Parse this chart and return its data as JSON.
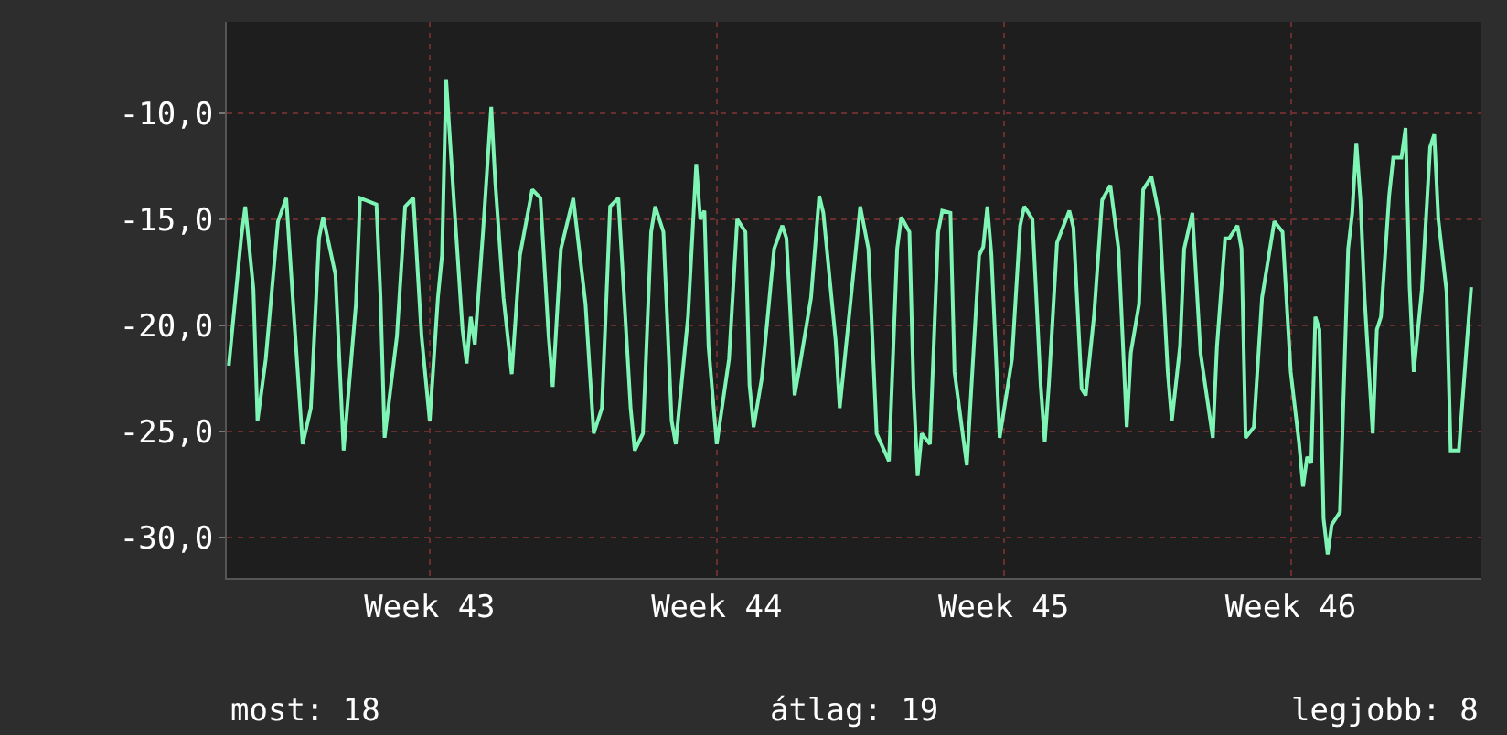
{
  "chart_data": {
    "type": "line",
    "color": "#7ef5b4",
    "categories": [
      null,
      null,
      null,
      null,
      null,
      null,
      null,
      null,
      null,
      null,
      null,
      null,
      null,
      null,
      null,
      null,
      null,
      null,
      null,
      null,
      null,
      null,
      null,
      null,
      null,
      null,
      null,
      null,
      null,
      null,
      null,
      null,
      null,
      null,
      null,
      null,
      null,
      null,
      null,
      null,
      null,
      null,
      null,
      null,
      null,
      null,
      null,
      null,
      null,
      "Week 43",
      null,
      null,
      null,
      null,
      null,
      null,
      null,
      null,
      null,
      null,
      null,
      null,
      null,
      null,
      null,
      null,
      null,
      null,
      null,
      null,
      null,
      null,
      null,
      null,
      null,
      null,
      null,
      null,
      null,
      null,
      null,
      null,
      null,
      null,
      null,
      null,
      null,
      null,
      null,
      null,
      null,
      null,
      null,
      null,
      null,
      null,
      null,
      null,
      null,
      null,
      null,
      null,
      null,
      null,
      null,
      null,
      null,
      null,
      null,
      null,
      null,
      null,
      null,
      null,
      null,
      null,
      null,
      null,
      null,
      "Week 44",
      null,
      null,
      null,
      null,
      null,
      null,
      null,
      null,
      null,
      null,
      null,
      null,
      null,
      null,
      null,
      null,
      null,
      null,
      null,
      null,
      null,
      null,
      null,
      null,
      null,
      null,
      null,
      null,
      null,
      null,
      null,
      null,
      null,
      null,
      null,
      null,
      null,
      null,
      null,
      null,
      null,
      null,
      null,
      null,
      null,
      null,
      null,
      null,
      null,
      null,
      null,
      null,
      null,
      null,
      null,
      null,
      null,
      null,
      null,
      null,
      null,
      null,
      null,
      null,
      null,
      null,
      null,
      null,
      null,
      "Week 45",
      null,
      null,
      null,
      null,
      null,
      null,
      null,
      null,
      null,
      null,
      null,
      null,
      null,
      null,
      null,
      null,
      null,
      null,
      null,
      null,
      null,
      null,
      null,
      null,
      null,
      null,
      null,
      null,
      null,
      null,
      null,
      null,
      null,
      null,
      null,
      null,
      null,
      null,
      null,
      null,
      null,
      null,
      null,
      null,
      null,
      null,
      null,
      null,
      null,
      null,
      null,
      null,
      null,
      null,
      null,
      null,
      null,
      null,
      null,
      null,
      null,
      null,
      null,
      null,
      null,
      null,
      null,
      null,
      null,
      "Week 46",
      null,
      null,
      null,
      null,
      null,
      null,
      null,
      null,
      null,
      null,
      null,
      null,
      null,
      null,
      null,
      null,
      null,
      null,
      null,
      null,
      null,
      null,
      null,
      null,
      null,
      null,
      null,
      null,
      null,
      null,
      null,
      null,
      null,
      null,
      null,
      null,
      null,
      null,
      null,
      null,
      null,
      null,
      null,
      null,
      null,
      null
    ],
    "values": [
      -21.9,
      null,
      null,
      -15.9,
      -14.4,
      null,
      -18.3,
      -24.5,
      null,
      -21.6,
      null,
      null,
      -15.1,
      null,
      -14.0,
      null,
      -19.9,
      null,
      -25.6,
      null,
      -23.9,
      null,
      -15.9,
      -14.9,
      null,
      null,
      -17.6,
      null,
      -25.9,
      null,
      null,
      -19.0,
      -14.0,
      null,
      null,
      null,
      -14.3,
      -18.7,
      -25.3,
      null,
      null,
      -20.5,
      null,
      -14.4,
      null,
      -14.0,
      null,
      -20.5,
      null,
      -24.5,
      null,
      -18.7,
      -16.7,
      -8.4,
      null,
      -14.4,
      null,
      -20.2,
      -21.8,
      -19.6,
      -20.9,
      null,
      -15.6,
      null,
      -9.7,
      -13.3,
      null,
      -18.7,
      null,
      -22.3,
      null,
      -16.7,
      null,
      null,
      -13.6,
      null,
      -14.0,
      null,
      -20.5,
      -22.9,
      null,
      -16.4,
      null,
      null,
      -14.0,
      null,
      null,
      -19.0,
      null,
      -25.1,
      null,
      -23.9,
      null,
      -14.4,
      null,
      -14.0,
      null,
      null,
      -23.9,
      -25.9,
      null,
      -25.1,
      null,
      -15.6,
      -14.4,
      null,
      -15.6,
      null,
      -24.5,
      -25.6,
      null,
      null,
      -19.6,
      null,
      -12.4,
      -15.0,
      -14.6,
      -21.0,
      null,
      -25.6,
      null,
      null,
      -21.6,
      null,
      -15.0,
      null,
      -15.6,
      -22.8,
      -24.8,
      null,
      -22.5,
      null,
      null,
      -16.4,
      null,
      -15.3,
      -15.9,
      null,
      -23.3,
      -22.2,
      null,
      null,
      -18.7,
      null,
      -13.9,
      -14.7,
      null,
      null,
      -20.7,
      -23.9,
      null,
      null,
      -18.2,
      null,
      -14.4,
      null,
      -16.4,
      null,
      -25.1,
      null,
      null,
      -26.4,
      null,
      -16.4,
      -14.9,
      null,
      -15.6,
      -23.0,
      -27.1,
      -25.1,
      null,
      -25.6,
      null,
      -15.6,
      -14.6,
      null,
      -14.7,
      -22.2,
      null,
      null,
      -26.6,
      null,
      null,
      -16.7,
      -16.3,
      -14.4,
      -16.7,
      null,
      -25.3,
      null,
      null,
      -21.6,
      null,
      -15.3,
      -14.4,
      null,
      -15.0,
      null,
      -22.8,
      -25.5,
      -22.8,
      null,
      -16.1,
      null,
      null,
      -14.6,
      -15.4,
      null,
      -23.0,
      -23.3,
      null,
      -19.6,
      null,
      -14.1,
      null,
      -13.4,
      null,
      -16.4,
      null,
      -24.8,
      -21.3,
      null,
      -19.0,
      -13.6,
      null,
      -13.0,
      null,
      -14.9,
      null,
      -22.2,
      -24.5,
      null,
      -21.0,
      -16.4,
      null,
      -14.7,
      null,
      -21.3,
      null,
      null,
      -25.3,
      -21.0,
      null,
      -15.9,
      -15.9,
      null,
      -15.3,
      -16.4,
      -25.3,
      null,
      -24.8,
      null,
      -18.7,
      null,
      null,
      -15.1,
      null,
      -15.6,
      null,
      -22.2,
      null,
      -25.5,
      -27.6,
      -26.2,
      -26.5,
      -19.6,
      -20.2,
      -29.1,
      -30.8,
      -29.4,
      null,
      -28.8,
      null,
      -16.4,
      -14.7,
      -11.4,
      -14.1,
      -18.7,
      null,
      -25.1,
      -20.2,
      -19.6,
      null,
      -13.9,
      -12.1,
      null,
      -12.1,
      -10.7,
      -18.2,
      -22.2,
      null,
      -18.3,
      null,
      -11.6,
      -11.0,
      -15.0,
      null,
      -18.4,
      -25.9,
      null,
      -25.9,
      null,
      -20.7,
      -18.2,
      null,
      null
    ],
    "ylim": [
      -31.9,
      -5.7
    ],
    "yticks": [
      {
        "value": -30,
        "label": "-30,0"
      },
      {
        "value": -25,
        "label": "-25,0"
      },
      {
        "value": -20,
        "label": "-20,0"
      },
      {
        "value": -15,
        "label": "-15,0"
      },
      {
        "value": -10,
        "label": "-10,0"
      }
    ],
    "grid": true,
    "line_style": "solid",
    "annotations": [
      "most: 18",
      "átlag: 19",
      "legjobb: 8"
    ]
  }
}
